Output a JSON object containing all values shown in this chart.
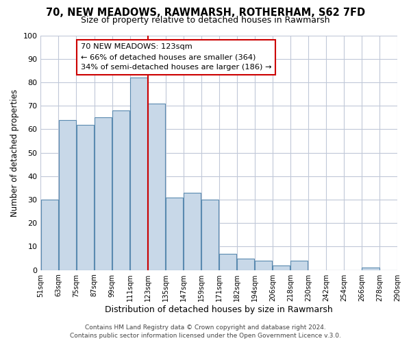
{
  "title": "70, NEW MEADOWS, RAWMARSH, ROTHERHAM, S62 7FD",
  "subtitle": "Size of property relative to detached houses in Rawmarsh",
  "xlabel": "Distribution of detached houses by size in Rawmarsh",
  "ylabel": "Number of detached properties",
  "bar_color": "#c8d8e8",
  "bar_edge_color": "#5a8ab0",
  "highlight_line_color": "#cc0000",
  "highlight_x_label": "123sqm",
  "bins": [
    "51sqm",
    "63sqm",
    "75sqm",
    "87sqm",
    "99sqm",
    "111sqm",
    "123sqm",
    "135sqm",
    "147sqm",
    "159sqm",
    "171sqm",
    "182sqm",
    "194sqm",
    "206sqm",
    "218sqm",
    "230sqm",
    "242sqm",
    "254sqm",
    "266sqm",
    "278sqm",
    "290sqm"
  ],
  "values": [
    30,
    64,
    62,
    65,
    68,
    82,
    71,
    31,
    33,
    30,
    7,
    5,
    4,
    2,
    4,
    0,
    0,
    0,
    1,
    0
  ],
  "ylim": [
    0,
    100
  ],
  "yticks": [
    0,
    10,
    20,
    30,
    40,
    50,
    60,
    70,
    80,
    90,
    100
  ],
  "annotation_title": "70 NEW MEADOWS: 123sqm",
  "annotation_line1": "← 66% of detached houses are smaller (364)",
  "annotation_line2": "34% of semi-detached houses are larger (186) →",
  "annotation_box_edge": "#cc0000",
  "footer_line1": "Contains HM Land Registry data © Crown copyright and database right 2024.",
  "footer_line2": "Contains public sector information licensed under the Open Government Licence v.3.0.",
  "background_color": "#ffffff",
  "grid_color": "#c0c8d8"
}
